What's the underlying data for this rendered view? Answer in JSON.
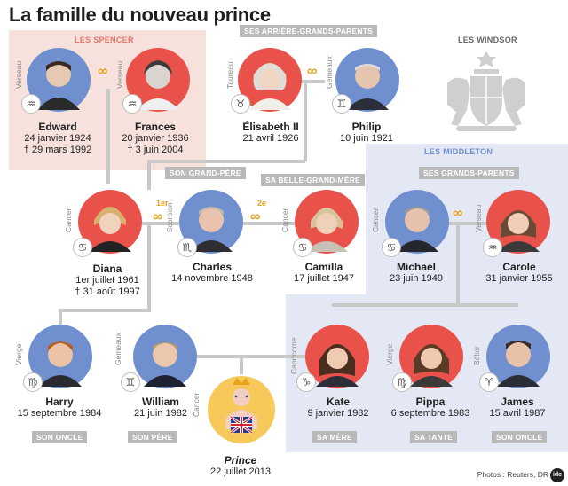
{
  "title": "La famille du nouveau prince",
  "groups": {
    "spencer": "LES SPENCER",
    "windsor": "LES WINDSOR",
    "middleton": "LES MIDDLETON"
  },
  "tags": {
    "arriere_grands_parents": "SES ARRIÈRE-GRANDS-PARENTS",
    "grand_pere": "SON GRAND-PÈRE",
    "belle_grand_mere": "SA BELLE-GRAND-MÈRE",
    "grands_parents": "SES GRANDS-PARENTS",
    "oncle_harry": "SON ONCLE",
    "pere": "SON PÈRE",
    "mere": "SA MÈRE",
    "tante": "SA TANTE",
    "oncle_james": "SON ONCLE"
  },
  "marriage_ordinals": {
    "first": "1er",
    "second": "2e"
  },
  "people": {
    "edward": {
      "name": "Edward",
      "sign": "Verseau",
      "glyph": "♒",
      "line1": "24 janvier 1924",
      "line2": "† 29 mars 1992"
    },
    "frances": {
      "name": "Frances",
      "sign": "Verseau",
      "glyph": "♒",
      "line1": "20 janvier 1936",
      "line2": "† 3 juin 2004"
    },
    "elisabeth": {
      "name": "Élisabeth II",
      "sign": "Taureau",
      "glyph": "♉",
      "line1": "21 avril 1926",
      "line2": ""
    },
    "philip": {
      "name": "Philip",
      "sign": "Gémeaux",
      "glyph": "♊",
      "line1": "10 juin 1921",
      "line2": ""
    },
    "diana": {
      "name": "Diana",
      "sign": "Cancer",
      "glyph": "♋",
      "line1": "1er juillet 1961",
      "line2": "† 31 août 1997"
    },
    "charles": {
      "name": "Charles",
      "sign": "Scorpion",
      "glyph": "♏",
      "line1": "14 novembre 1948",
      "line2": ""
    },
    "camilla": {
      "name": "Camilla",
      "sign": "Cancer",
      "glyph": "♋",
      "line1": "17 juillet 1947",
      "line2": ""
    },
    "michael": {
      "name": "Michael",
      "sign": "Cancer",
      "glyph": "♋",
      "line1": "23 juin 1949",
      "line2": ""
    },
    "carole": {
      "name": "Carole",
      "sign": "Verseau",
      "glyph": "♒",
      "line1": "31 janvier 1955",
      "line2": ""
    },
    "harry": {
      "name": "Harry",
      "sign": "Vierge",
      "glyph": "♍",
      "line1": "15 septembre 1984",
      "line2": ""
    },
    "william": {
      "name": "William",
      "sign": "Gémeaux",
      "glyph": "♊",
      "line1": "21 juin 1982",
      "line2": ""
    },
    "prince": {
      "name": "Prince",
      "sign": "Cancer",
      "glyph": "",
      "line1": "22 juillet 2013",
      "line2": ""
    },
    "kate": {
      "name": "Kate",
      "sign": "Capricorne",
      "glyph": "♑",
      "line1": "9 janvier 1982",
      "line2": ""
    },
    "pippa": {
      "name": "Pippa",
      "sign": "Vierge",
      "glyph": "♍",
      "line1": "6 septembre 1983",
      "line2": ""
    },
    "james": {
      "name": "James",
      "sign": "Bélier",
      "glyph": "♈",
      "line1": "15 avril 1987",
      "line2": ""
    }
  },
  "credit": "Photos : Reuters, DR",
  "logo_text": "ide",
  "colors": {
    "female": "#e8524a",
    "male": "#6f8fcf",
    "infinity": "#e8a21b",
    "tag": "#b9b9b9"
  }
}
